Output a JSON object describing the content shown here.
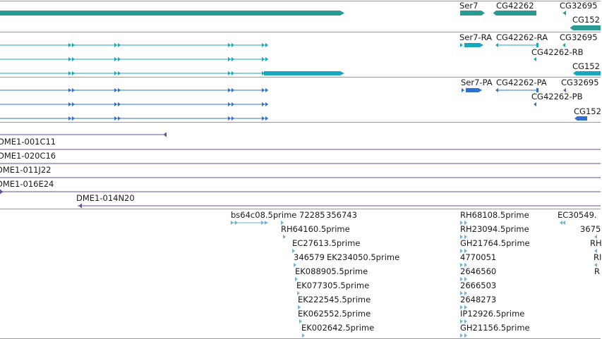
{
  "colors": {
    "gene": "#2a9a92",
    "transcript": "#19a7bf",
    "protein": "#2f6fcf",
    "clone": "#6a4aa0",
    "est": "#6db3dc",
    "divider": "#9a9a9a"
  },
  "tracks": {
    "gene": {
      "labels": [
        "Ser7",
        "CG42262",
        "CG32695",
        "CG152"
      ]
    },
    "transcript": {
      "labels": [
        "Ser7-RA",
        "CG42262-RA",
        "CG32695",
        "CG42262-RB",
        "CG152"
      ]
    },
    "protein": {
      "labels": [
        "Ser7-PA",
        "CG42262-PA",
        "CG32695",
        "CG42262-PB",
        "CG152"
      ]
    },
    "clone": {
      "labels": [
        "DME1-001C11",
        "DME1-020C16",
        "DME1-011J22",
        "DME1-016E24",
        "DME1-014N20"
      ]
    },
    "est": {
      "labels": [
        "bs64c08.5prime",
        "72285",
        "356743",
        "RH64160.5prime",
        "EC27613.5prime",
        "346579",
        "EK234050.5prime",
        "EK088905.5prime",
        "EK077305.5prime",
        "EK222545.5prime",
        "EK062552.5prime",
        "EK002642.5prime",
        "RH68108.5prime",
        "RH23094.5prime",
        "GH21764.5prime",
        "4770051",
        "2646560",
        "2666503",
        "2648273",
        "IP12926.5prime",
        "GH21156.5prime",
        "EC30549.",
        "3675",
        "RH",
        "RI",
        "R"
      ]
    }
  }
}
